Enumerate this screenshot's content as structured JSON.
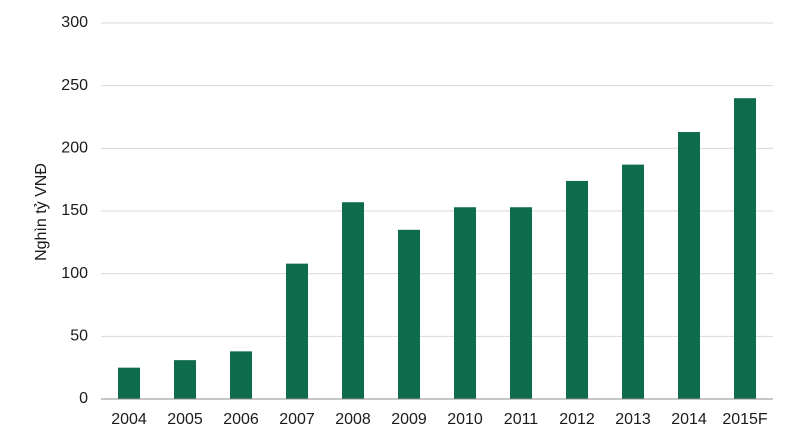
{
  "chart_data": {
    "type": "bar",
    "categories": [
      "2004",
      "2005",
      "2006",
      "2007",
      "2008",
      "2009",
      "2010",
      "2011",
      "2012",
      "2013",
      "2014",
      "2015F"
    ],
    "values": [
      25,
      31,
      38,
      108,
      157,
      135,
      153,
      153,
      174,
      187,
      213,
      240
    ],
    "ylabel": "Nghìn tỷ VNĐ",
    "xlabel": "",
    "ylim": [
      0,
      300
    ],
    "yticks": [
      0,
      50,
      100,
      150,
      200,
      250,
      300
    ],
    "grid": true,
    "legend": "none",
    "bar_color": "#0e6b4b"
  }
}
